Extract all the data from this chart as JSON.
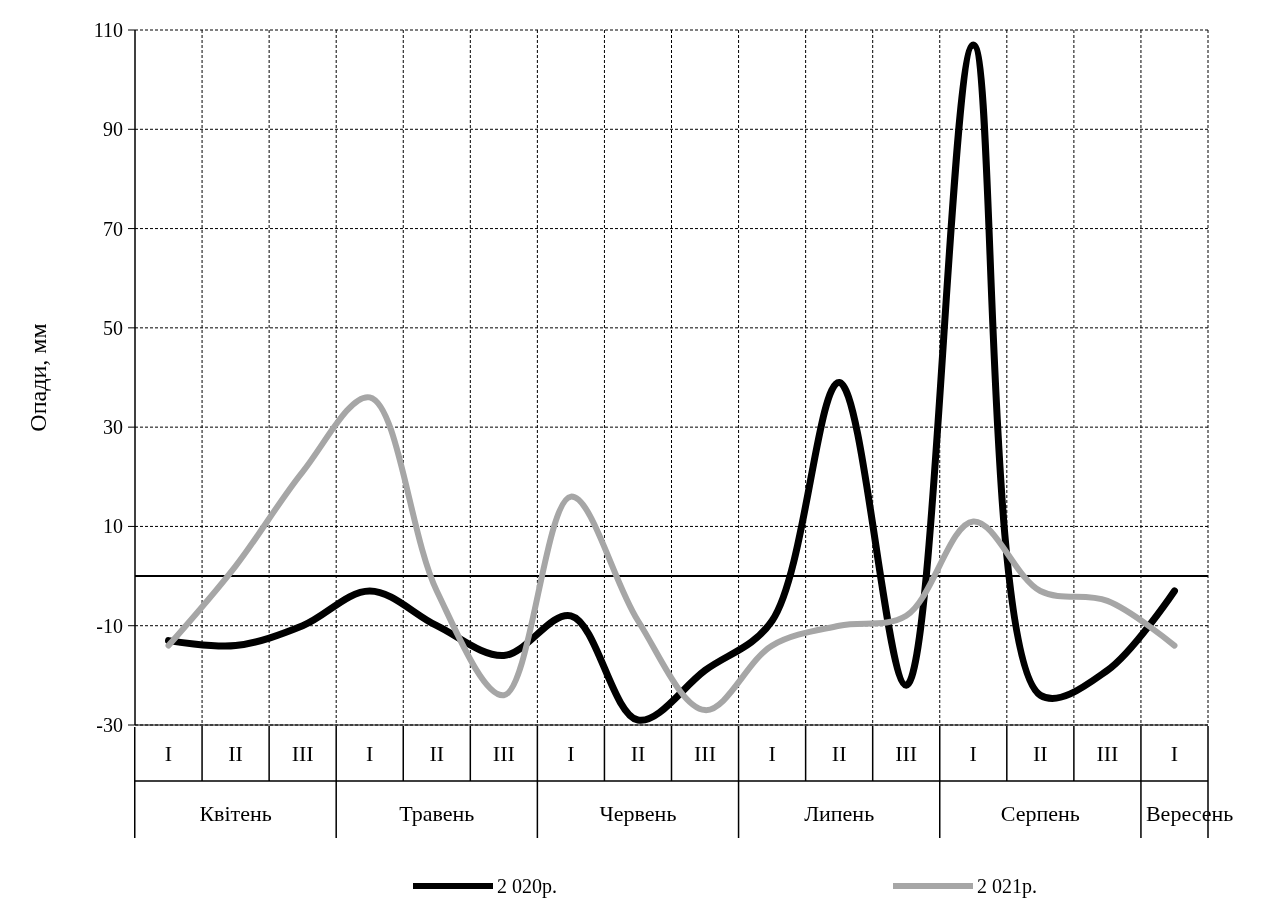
{
  "chart_data": {
    "type": "line",
    "ylabel": "Опади, мм",
    "categories": [
      "I",
      "II",
      "III",
      "I",
      "II",
      "III",
      "I",
      "II",
      "III",
      "I",
      "II",
      "III",
      "I",
      "II",
      "III",
      "I"
    ],
    "annotations": [
      "Квітень",
      "Травень",
      "Червень",
      "Липень",
      "Серпень",
      "Вересень"
    ],
    "series": [
      {
        "name": "2 020р.",
        "color": "#000000",
        "values": [
          -13,
          -14,
          -10,
          -3,
          -10,
          -16,
          -8,
          -29,
          -19,
          -9,
          39,
          -22,
          107,
          -24,
          -19,
          -3
        ]
      },
      {
        "name": "2 021р.",
        "color": "#a6a6a6",
        "values": [
          -14,
          2,
          21,
          36,
          -3,
          -24,
          16,
          -9,
          -27,
          -14,
          -10,
          -8,
          11,
          -3,
          -5,
          -14
        ]
      }
    ],
    "ylim": [
      -30,
      110
    ],
    "yticks": [
      -30,
      -10,
      10,
      30,
      50,
      70,
      90,
      110
    ],
    "ref_lines": [
      {
        "axis": "y",
        "value": 0,
        "color": "#000000"
      }
    ],
    "grid": true,
    "legend": "bottom"
  }
}
